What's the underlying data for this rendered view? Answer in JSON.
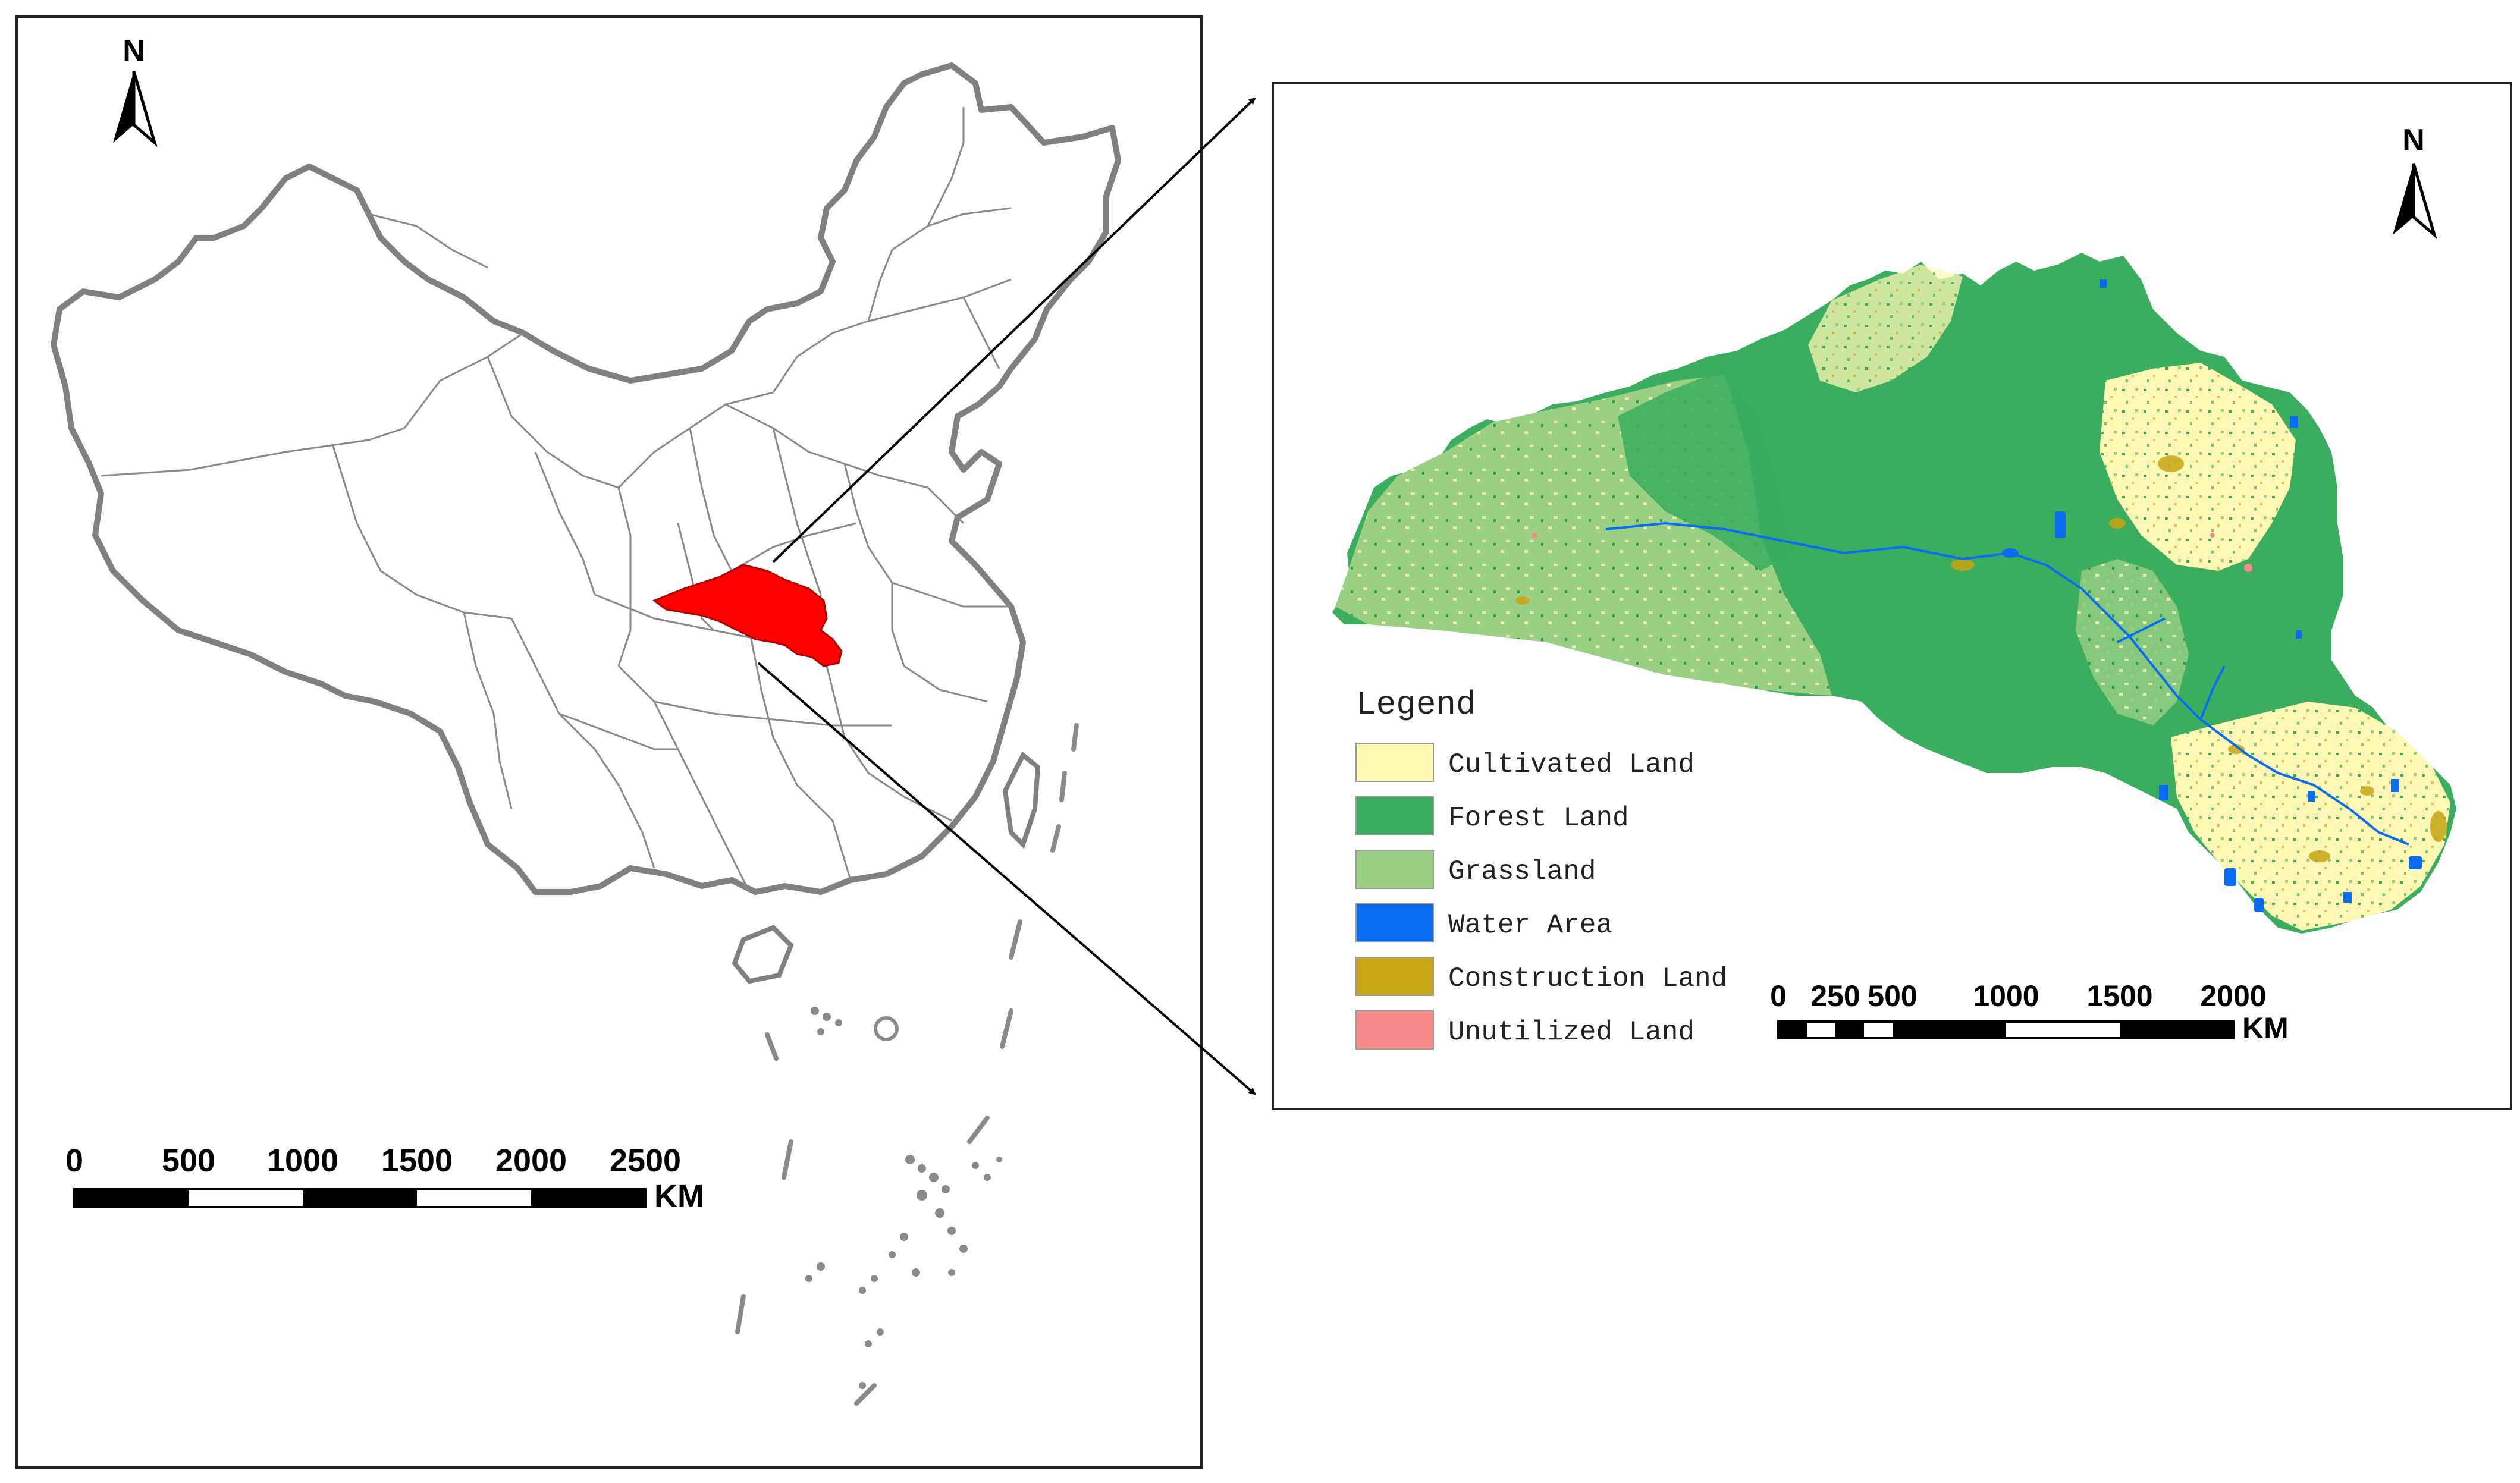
{
  "china_map": {
    "north_label": "N",
    "scale_bar": {
      "ticks": [
        "0",
        "500",
        "1000",
        "1500",
        "2000",
        "2500"
      ],
      "unit": "KM"
    },
    "highlight_color": "#ff0000"
  },
  "study_area_map": {
    "north_label": "N",
    "legend": {
      "title": "Legend",
      "items": [
        {
          "label": "Cultivated Land",
          "color": "#fff8b4"
        },
        {
          "label": "Forest Land",
          "color": "#3aad5e"
        },
        {
          "label": "Grassland",
          "color": "#9ad083"
        },
        {
          "label": "Water Area",
          "color": "#0a6cf0"
        },
        {
          "label": "Construction Land",
          "color": "#c8a514"
        },
        {
          "label": "Unutilized Land",
          "color": "#f78a8a"
        }
      ]
    },
    "scale_bar": {
      "ticks": [
        "0",
        "250",
        "500",
        "1000",
        "1500",
        "2000"
      ],
      "unit": "KM"
    }
  }
}
